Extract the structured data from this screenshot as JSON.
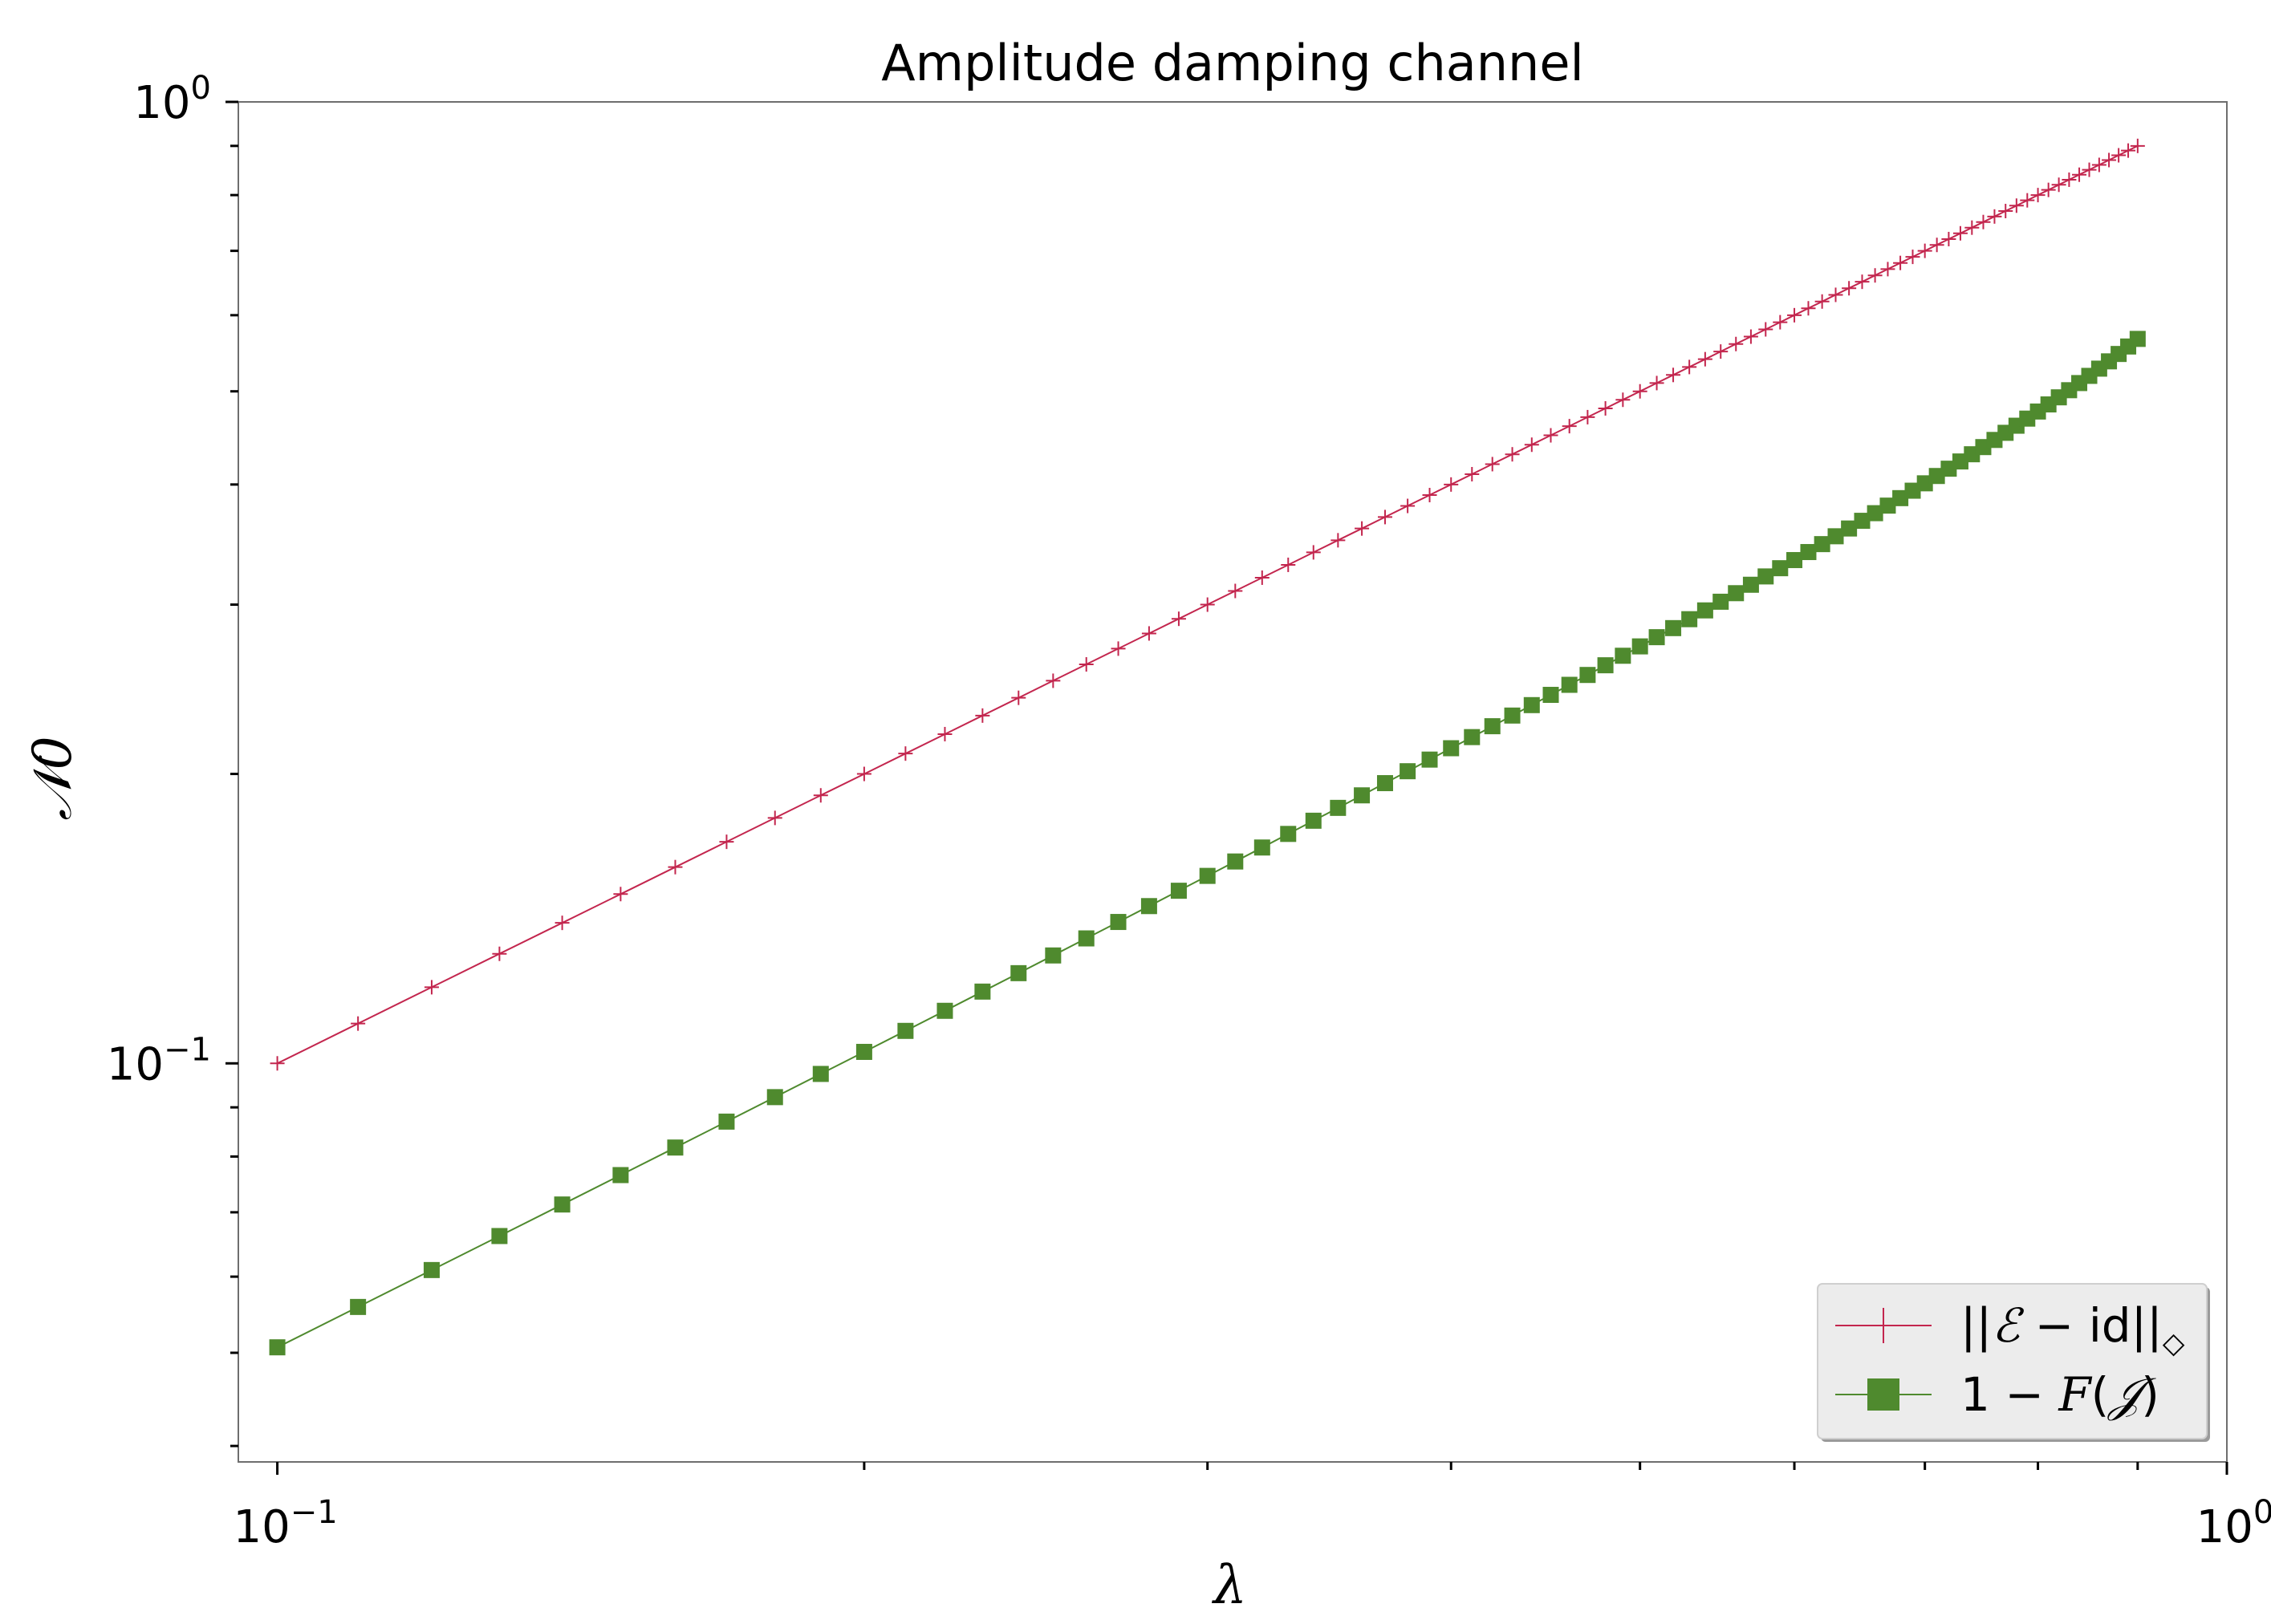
{
  "chart_data": {
    "type": "line",
    "title": "Amplitude damping channel",
    "xlabel": "λ",
    "ylabel": "𝒩0",
    "xscale": "log",
    "yscale": "log",
    "xlim": [
      0.0955,
      1.0
    ],
    "ylim": [
      0.0385,
      1.0
    ],
    "x_ticks": [
      {
        "base": "10",
        "exp": "−1",
        "value": 0.1
      },
      {
        "base": "10",
        "exp": "0",
        "value": 1.0
      }
    ],
    "y_ticks": [
      {
        "base": "10",
        "exp": "−1",
        "value": 0.1
      },
      {
        "base": "10",
        "exp": "0",
        "value": 1.0
      }
    ],
    "grid": false,
    "legend_position": "lower-right",
    "x": {
      "start": 0.1,
      "stop": 0.9,
      "step": 0.01
    },
    "series": [
      {
        "name": "||ℰ − id||◇",
        "relation": "y = x",
        "color": "#c3264e",
        "marker": "plus"
      },
      {
        "name": "1 − F(𝒥)",
        "relation": "y = 1 − (1 + sqrt(1 − x))² / 4",
        "color": "#4f8a2e",
        "marker": "square"
      }
    ],
    "legend": [
      {
        "pre": "||",
        "italic": "ℰ",
        "post": " − id||",
        "sub": "◇"
      },
      {
        "pre": "1 − ",
        "italic": "F",
        "post": "(",
        "italic2": "𝒥",
        "post2": ")"
      }
    ]
  }
}
